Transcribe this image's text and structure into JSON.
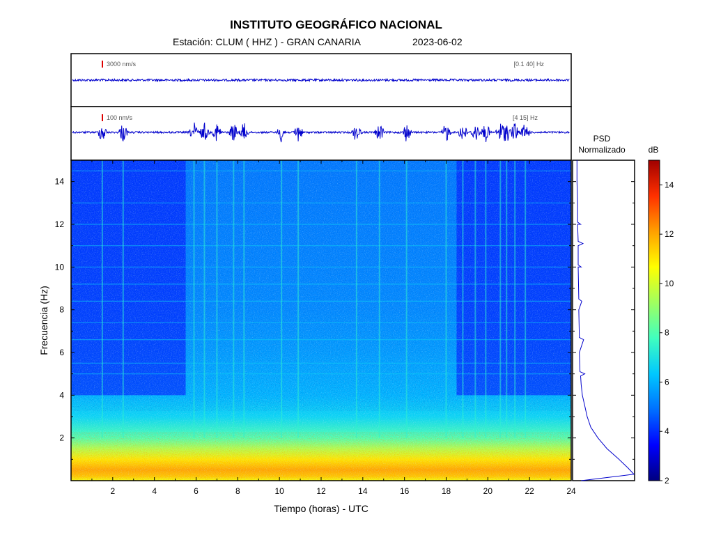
{
  "header": {
    "title": "INSTITUTO GEOGRÁFICO NACIONAL",
    "station": "Estación:  CLUM ( HHZ ) - GRAN CANARIA",
    "date": "2023-06-02"
  },
  "colors": {
    "trace": "#0000cc",
    "scale_marker": "#dd0000",
    "colormap": [
      "#00007f",
      "#0000ff",
      "#0070ff",
      "#00c8ff",
      "#40ffbf",
      "#a0ff60",
      "#ffff00",
      "#ffa000",
      "#ff3000",
      "#a00000"
    ]
  },
  "chart_data": [
    {
      "type": "line",
      "name": "seismogram-broadband",
      "scale_label": "3000 nm/s",
      "filter_label": "[0.1 40] Hz",
      "x_range": [
        0,
        24
      ]
    },
    {
      "type": "line",
      "name": "seismogram-filtered",
      "scale_label": "100 nm/s",
      "filter_label": "[4 15] Hz",
      "x_range": [
        0,
        24
      ],
      "events_hours": [
        1.5,
        2.5,
        5.9,
        6.4,
        7.0,
        7.8,
        8.3,
        10.1,
        10.9,
        13.7,
        14.8,
        16.1,
        18.0,
        18.8,
        19.4,
        19.9,
        20.6,
        20.9,
        21.3,
        21.8
      ]
    },
    {
      "type": "heatmap",
      "name": "spectrogram",
      "xlabel": "Tiempo (horas) - UTC",
      "ylabel": "Frecuencia  (Hz)",
      "xlim": [
        0,
        24
      ],
      "ylim": [
        0,
        15
      ],
      "x_ticks": [
        2,
        4,
        6,
        8,
        10,
        12,
        14,
        16,
        18,
        20,
        22,
        24
      ],
      "y_ticks": [
        2,
        4,
        6,
        8,
        10,
        12,
        14
      ],
      "colorbar": {
        "label": "dB",
        "range": [
          2,
          15
        ],
        "ticks": [
          2,
          4,
          6,
          8,
          10,
          12,
          14
        ]
      },
      "db_by_frequency": [
        [
          0.2,
          11.5
        ],
        [
          0.5,
          12.0
        ],
        [
          1.0,
          11.0
        ],
        [
          1.5,
          9.5
        ],
        [
          2.0,
          8.0
        ],
        [
          3.0,
          6.6
        ],
        [
          4.0,
          6.0
        ],
        [
          6.0,
          5.6
        ],
        [
          8.0,
          5.3
        ],
        [
          10.0,
          5.2
        ],
        [
          15.0,
          5.0
        ]
      ],
      "night_hours_low_noise": [
        [
          0,
          5.5
        ],
        [
          18.5,
          24
        ]
      ],
      "tonal_lines_hz": [
        5.0,
        5.5,
        6.6,
        7.4,
        8.4,
        9.2,
        10.0,
        11.0,
        12.0,
        13.0,
        14.5
      ]
    },
    {
      "type": "line",
      "name": "psd-normalized",
      "title": "PSD\nNormalizado",
      "xlim": [
        0,
        1
      ],
      "ylim": [
        0,
        15
      ],
      "points": [
        [
          0.12,
          0.0
        ],
        [
          1.0,
          0.3
        ],
        [
          0.9,
          0.6
        ],
        [
          0.75,
          1.0
        ],
        [
          0.55,
          1.5
        ],
        [
          0.4,
          2.0
        ],
        [
          0.28,
          2.5
        ],
        [
          0.22,
          3.0
        ],
        [
          0.18,
          3.5
        ],
        [
          0.14,
          4.0
        ],
        [
          0.12,
          4.5
        ],
        [
          0.11,
          4.9
        ],
        [
          0.18,
          5.0
        ],
        [
          0.1,
          5.1
        ],
        [
          0.09,
          6.0
        ],
        [
          0.16,
          6.6
        ],
        [
          0.09,
          6.7
        ],
        [
          0.08,
          8.0
        ],
        [
          0.13,
          8.4
        ],
        [
          0.08,
          8.5
        ],
        [
          0.07,
          10.0
        ],
        [
          0.12,
          10.0
        ],
        [
          0.07,
          10.1
        ],
        [
          0.07,
          11.0
        ],
        [
          0.15,
          11.1
        ],
        [
          0.07,
          11.2
        ],
        [
          0.06,
          12.0
        ],
        [
          0.11,
          12.0
        ],
        [
          0.06,
          12.1
        ],
        [
          0.06,
          13.0
        ],
        [
          0.05,
          14.0
        ],
        [
          0.05,
          15.0
        ]
      ]
    }
  ]
}
